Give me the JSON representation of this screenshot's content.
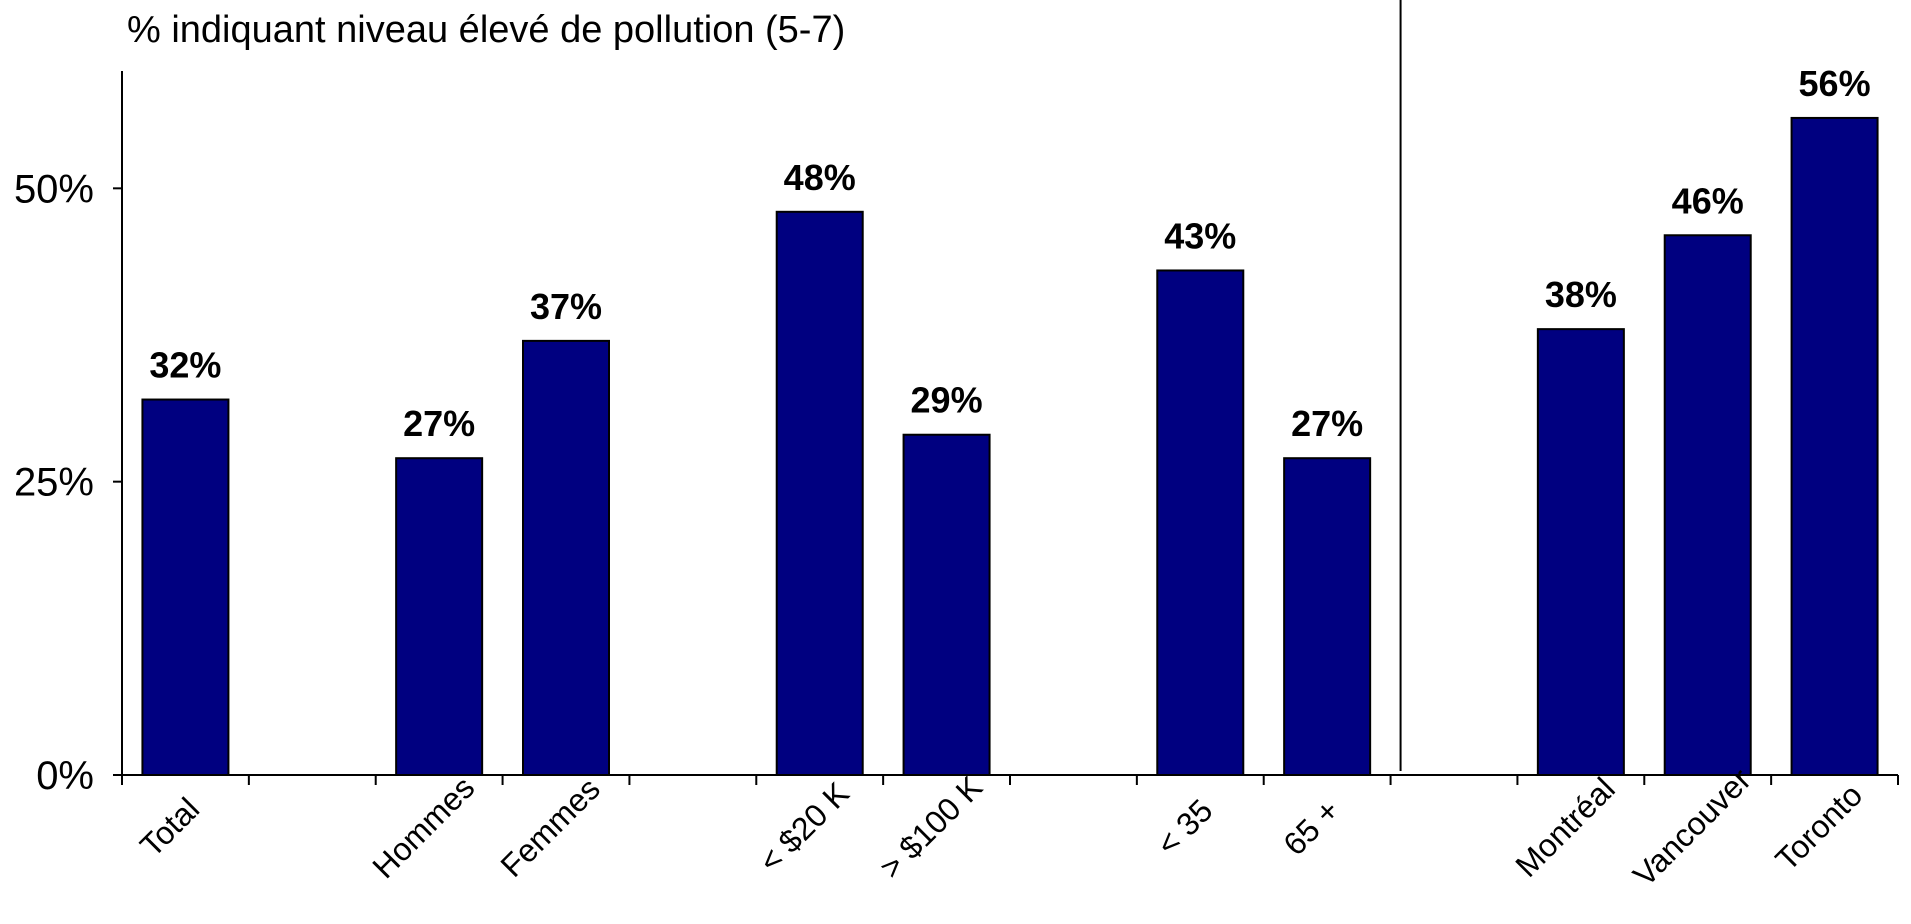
{
  "chart_data": {
    "type": "bar",
    "title": "% indiquant niveau élevé de pollution (5-7)",
    "xlabel": "",
    "ylabel": "",
    "ylim": [
      0,
      60
    ],
    "yticks": [
      0,
      25,
      50
    ],
    "ytick_labels": [
      "0%",
      "25%",
      "50%"
    ],
    "slots": [
      "Total",
      "",
      "Hommes",
      "Femmes",
      "",
      "< $20 K",
      "> $100 K",
      "",
      "< 35",
      "65 +",
      "",
      "Montréal",
      "Vancouver",
      "Toronto"
    ],
    "categories": [
      "Total",
      "Hommes",
      "Femmes",
      "< $20 K",
      "> $100 K",
      "< 35",
      "65 +",
      "Montréal",
      "Vancouver",
      "Toronto"
    ],
    "values": [
      32,
      27,
      37,
      48,
      29,
      43,
      27,
      38,
      46,
      56
    ],
    "value_labels": [
      "32%",
      "27%",
      "37%",
      "48%",
      "29%",
      "43%",
      "27%",
      "38%",
      "46%",
      "56%"
    ],
    "bar_color": "#000080",
    "bar_outline": "#000000",
    "separator_after_slot": 10,
    "grid": false,
    "legend": "none"
  }
}
